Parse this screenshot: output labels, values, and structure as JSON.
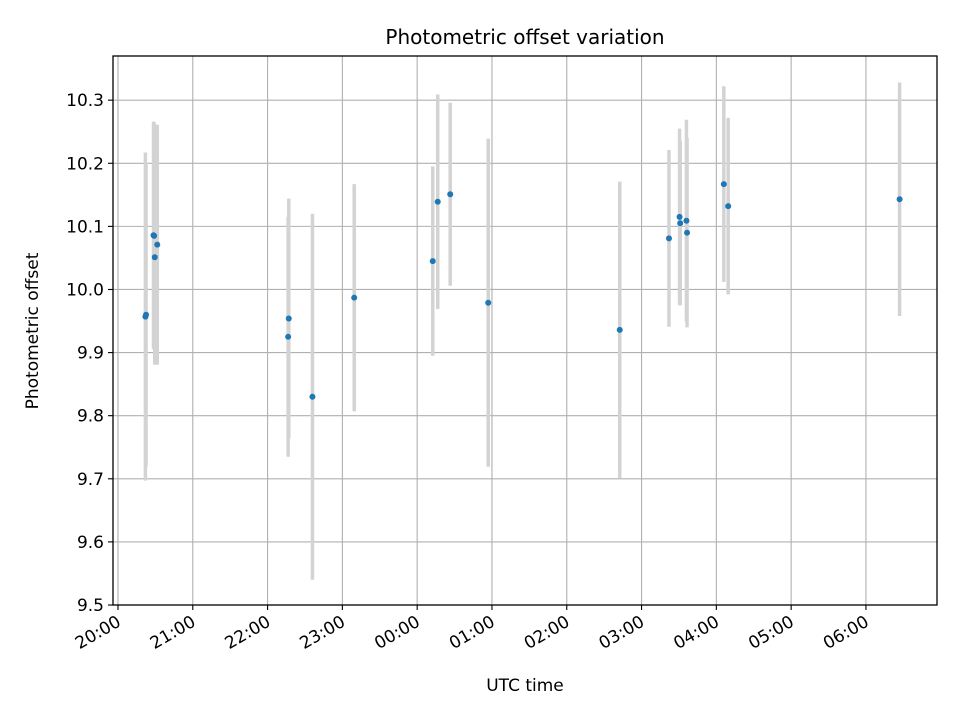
{
  "chart_data": {
    "type": "scatter",
    "title": "Photometric offset variation",
    "xlabel": "UTC time",
    "ylabel": "Photometric offset",
    "x_axis_type": "time",
    "xlim": [
      "2000-01-01T19:56:00",
      "2000-01-02T06:57:00"
    ],
    "ylim": [
      9.5,
      10.37
    ],
    "grid": true,
    "x_ticks": [
      {
        "t": "2000-01-01T20:00:00",
        "label": "20:00"
      },
      {
        "t": "2000-01-01T21:00:00",
        "label": "21:00"
      },
      {
        "t": "2000-01-01T22:00:00",
        "label": "22:00"
      },
      {
        "t": "2000-01-01T23:00:00",
        "label": "23:00"
      },
      {
        "t": "2000-01-02T00:00:00",
        "label": "00:00"
      },
      {
        "t": "2000-01-02T01:00:00",
        "label": "01:00"
      },
      {
        "t": "2000-01-02T02:00:00",
        "label": "02:00"
      },
      {
        "t": "2000-01-02T03:00:00",
        "label": "03:00"
      },
      {
        "t": "2000-01-02T04:00:00",
        "label": "04:00"
      },
      {
        "t": "2000-01-02T05:00:00",
        "label": "05:00"
      },
      {
        "t": "2000-01-02T06:00:00",
        "label": "06:00"
      }
    ],
    "y_ticks": [
      {
        "v": 9.5,
        "label": "9.5"
      },
      {
        "v": 9.6,
        "label": "9.6"
      },
      {
        "v": 9.7,
        "label": "9.7"
      },
      {
        "v": 9.8,
        "label": "9.8"
      },
      {
        "v": 9.9,
        "label": "9.9"
      },
      {
        "v": 10.0,
        "label": "10.0"
      },
      {
        "v": 10.1,
        "label": "10.1"
      },
      {
        "v": 10.2,
        "label": "10.2"
      },
      {
        "v": 10.3,
        "label": "10.3"
      }
    ],
    "point_color": "#1f77b4",
    "errorbar_color": "#d3d3d3",
    "series": [
      {
        "points": [
          {
            "x": "2000-01-01T20:22:00",
            "y": 9.957,
            "err": 0.26
          },
          {
            "x": "2000-01-01T20:22:30",
            "y": 9.96,
            "err": 0.24
          },
          {
            "x": "2000-01-01T20:28:30",
            "y": 10.086,
            "err": 0.18
          },
          {
            "x": "2000-01-01T20:29:00",
            "y": 10.085,
            "err": 0.18
          },
          {
            "x": "2000-01-01T20:29:30",
            "y": 10.051,
            "err": 0.17
          },
          {
            "x": "2000-01-01T20:31:30",
            "y": 10.071,
            "err": 0.19
          },
          {
            "x": "2000-01-01T22:16:30",
            "y": 9.925,
            "err": 0.19
          },
          {
            "x": "2000-01-01T22:17:00",
            "y": 9.954,
            "err": 0.19
          },
          {
            "x": "2000-01-01T22:36:00",
            "y": 9.83,
            "err": 0.29
          },
          {
            "x": "2000-01-01T23:09:30",
            "y": 9.987,
            "err": 0.18
          },
          {
            "x": "2000-01-02T00:12:30",
            "y": 10.045,
            "err": 0.15
          },
          {
            "x": "2000-01-02T00:16:30",
            "y": 10.139,
            "err": 0.17
          },
          {
            "x": "2000-01-02T00:26:30",
            "y": 10.151,
            "err": 0.145
          },
          {
            "x": "2000-01-02T00:57:00",
            "y": 9.979,
            "err": 0.26
          },
          {
            "x": "2000-01-02T02:42:30",
            "y": 9.936,
            "err": 0.235
          },
          {
            "x": "2000-01-02T03:22:00",
            "y": 10.081,
            "err": 0.14
          },
          {
            "x": "2000-01-02T03:30:30",
            "y": 10.115,
            "err": 0.14
          },
          {
            "x": "2000-01-02T03:31:00",
            "y": 10.105,
            "err": 0.13
          },
          {
            "x": "2000-01-02T03:36:00",
            "y": 10.109,
            "err": 0.16
          },
          {
            "x": "2000-01-02T03:36:30",
            "y": 10.09,
            "err": 0.15
          },
          {
            "x": "2000-01-02T04:06:00",
            "y": 10.167,
            "err": 0.155
          },
          {
            "x": "2000-01-02T04:09:30",
            "y": 10.132,
            "err": 0.14
          },
          {
            "x": "2000-01-02T06:27:00",
            "y": 10.143,
            "err": 0.185
          }
        ]
      }
    ]
  }
}
